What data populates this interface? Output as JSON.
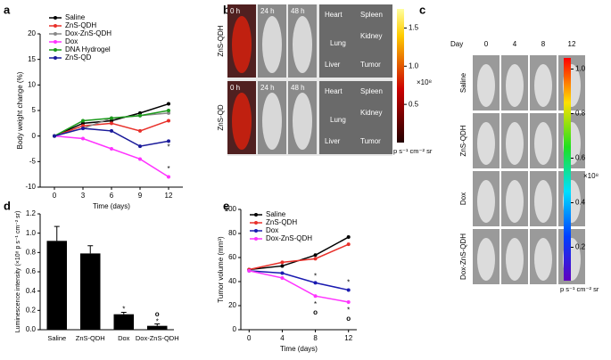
{
  "panel_labels": [
    "a",
    "b",
    "c",
    "d",
    "e"
  ],
  "chart_data": [
    {
      "type": "line",
      "xlabel": "Time (days)",
      "ylabel": "Body weight change (%)",
      "x": [
        0,
        3,
        6,
        9,
        12
      ],
      "xlim": [
        -1.5,
        13.5
      ],
      "xticks": [
        0,
        3,
        6,
        9,
        12
      ],
      "ylim": [
        -10,
        20
      ],
      "yticks": [
        -10,
        -5,
        0,
        5,
        10,
        15,
        20
      ],
      "legend": "upper left",
      "series": [
        {
          "name": "Saline",
          "color": "#000000",
          "values": [
            0,
            2.5,
            3,
            4.5,
            6.3
          ]
        },
        {
          "name": "ZnS-QDH",
          "color": "#e8302a",
          "values": [
            0,
            2,
            2.5,
            1,
            3
          ]
        },
        {
          "name": "Dox-ZnS-QDH",
          "color": "#888888",
          "values": [
            0,
            1.5,
            3.5,
            4,
            4.5
          ]
        },
        {
          "name": "Dox",
          "color": "#ff33ff",
          "values": [
            0,
            -0.5,
            -2.5,
            -4.5,
            -8
          ]
        },
        {
          "name": "DNA Hydrogel",
          "color": "#1a9a1a",
          "values": [
            0,
            3,
            3.5,
            4,
            5
          ]
        },
        {
          "name": "ZnS-QD",
          "color": "#1a1a9a",
          "values": [
            0,
            1.5,
            1,
            -2,
            -1
          ]
        }
      ],
      "annotations": [
        {
          "text": "*",
          "x": 12,
          "y": -6.5
        },
        {
          "text": "*",
          "x": 12,
          "y": -2.2
        }
      ]
    },
    {
      "type": "bar",
      "ylabel": "Luminescence intensity (×10⁸ p s⁻¹ cm⁻² sr)",
      "categories": [
        "Saline",
        "ZnS-QDH",
        "Dox",
        "Dox-ZnS-QDH"
      ],
      "values": [
        0.92,
        0.79,
        0.16,
        0.04
      ],
      "errors": [
        0.15,
        0.08,
        0.02,
        0.02
      ],
      "color": "#000000",
      "ylim": [
        0,
        1.2
      ],
      "yticks": [
        {
          "value": 0,
          "label": "0.0"
        },
        {
          "value": 0.2,
          "label": "0.2"
        },
        {
          "value": 0.4,
          "label": "0.4"
        },
        {
          "value": 0.6,
          "label": "0.6"
        },
        {
          "value": 0.8,
          "label": "0.8"
        },
        {
          "value": 1,
          "label": "1.0"
        },
        {
          "value": 1.2,
          "label": "1.2"
        }
      ],
      "annotations": [
        {
          "text": "*",
          "x": 2,
          "y": 0.21
        },
        {
          "text": "*",
          "x": 3,
          "y": 0.08
        },
        {
          "text": "o",
          "x": 3,
          "y": 0.16
        }
      ]
    },
    {
      "type": "line",
      "xlabel": "Time (days)",
      "ylabel": "Tumor volume (mm³)",
      "x": [
        0,
        4,
        8,
        12
      ],
      "xlim": [
        -1,
        13
      ],
      "xticks": [
        0,
        4,
        8,
        12
      ],
      "ylim": [
        0,
        100
      ],
      "yticks": [
        0,
        20,
        40,
        60,
        80,
        100
      ],
      "legend": "upper left",
      "series": [
        {
          "name": "Saline",
          "color": "#000000",
          "values": [
            50,
            53,
            62,
            77
          ]
        },
        {
          "name": "ZnS-QDH",
          "color": "#e8302a",
          "values": [
            50,
            56,
            59,
            71
          ]
        },
        {
          "name": "Dox",
          "color": "#1a1ab0",
          "values": [
            49,
            47,
            39,
            33
          ]
        },
        {
          "name": "Dox-ZnS-QDH",
          "color": "#ff33ff",
          "values": [
            49,
            43,
            28,
            23
          ]
        }
      ],
      "annotations": [
        {
          "text": "*",
          "x": 8,
          "y": 44
        },
        {
          "text": "*",
          "x": 12,
          "y": 39
        },
        {
          "text": "*",
          "x": 8,
          "y": 21
        },
        {
          "text": "*",
          "x": 12,
          "y": 16
        },
        {
          "text": "o",
          "x": 8,
          "y": 14
        },
        {
          "text": "o",
          "x": 12,
          "y": 9
        }
      ]
    }
  ],
  "images": {
    "b": {
      "columns": [
        "0 h",
        "24 h",
        "48 h"
      ],
      "rows": [
        "ZnS-QDH",
        "ZnS-QD"
      ],
      "organs": [
        "Heart",
        "Spleen",
        "Kidney",
        "Lung",
        "Liver",
        "Tumor"
      ],
      "colorbar": {
        "lim": [
          0,
          1.75
        ],
        "ticks": [
          {
            "value": 0.5,
            "label": "0.5"
          },
          {
            "value": 1,
            "label": "1.0"
          },
          {
            "value": 1.5,
            "label": "1.5"
          }
        ],
        "exponent": "×10⁸",
        "unit": "p s⁻¹ cm⁻² sr"
      }
    },
    "c": {
      "header": "Day",
      "columns": [
        "0",
        "4",
        "8",
        "12"
      ],
      "rows": [
        "Saline",
        "ZnS-QDH",
        "Dox",
        "Dox-ZnS-QDH"
      ],
      "colorbar": {
        "lim": [
          0.05,
          1.05
        ],
        "ticks": [
          {
            "value": 0.2,
            "label": "0.2"
          },
          {
            "value": 0.4,
            "label": "0.4"
          },
          {
            "value": 0.6,
            "label": "0.6"
          },
          {
            "value": 0.8,
            "label": "0.8"
          },
          {
            "value": 1,
            "label": "1.0"
          }
        ],
        "exponent": "×10⁸",
        "unit": "p s⁻¹ cm⁻² sr"
      }
    }
  }
}
